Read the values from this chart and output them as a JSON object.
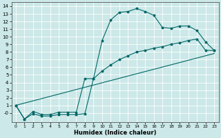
{
  "title": "",
  "xlabel": "Humidex (Indice chaleur)",
  "bg_color": "#cce8e8",
  "grid_color": "#ffffff",
  "line_color": "#006666",
  "xlim": [
    -0.5,
    23.5
  ],
  "ylim": [
    -1.2,
    14.5
  ],
  "xticks": [
    0,
    1,
    2,
    3,
    4,
    5,
    6,
    7,
    8,
    9,
    10,
    11,
    12,
    13,
    14,
    15,
    16,
    17,
    18,
    19,
    20,
    21,
    22,
    23
  ],
  "yticks": [
    0,
    1,
    2,
    3,
    4,
    5,
    6,
    7,
    8,
    9,
    10,
    11,
    12,
    13,
    14
  ],
  "ytick_labels": [
    "-0",
    "1",
    "2",
    "3",
    "4",
    "5",
    "6",
    "7",
    "8",
    "9",
    "10",
    "11",
    "12",
    "13",
    "14"
  ],
  "curve1_x": [
    0,
    1,
    2,
    3,
    4,
    5,
    6,
    7,
    8,
    9,
    10,
    11,
    12,
    13,
    14,
    15,
    16,
    17,
    18,
    19,
    20,
    21,
    22,
    23
  ],
  "curve1_y": [
    1,
    -0.8,
    -0.1,
    -0.4,
    -0.4,
    -0.2,
    -0.2,
    -0.2,
    -0.1,
    4.5,
    9.5,
    12.2,
    13.2,
    13.3,
    13.7,
    13.3,
    12.8,
    11.2,
    11.1,
    11.4,
    11.4,
    10.8,
    9.3,
    8.2
  ],
  "curve2_x": [
    0,
    1,
    2,
    3,
    4,
    5,
    6,
    7,
    8,
    9,
    10,
    11,
    12,
    13,
    14,
    15,
    16,
    17,
    18,
    19,
    20,
    21,
    22,
    23
  ],
  "curve2_y": [
    1,
    -0.8,
    0.2,
    -0.2,
    -0.2,
    0.1,
    0.1,
    0.1,
    4.5,
    4.5,
    5.5,
    6.3,
    7.0,
    7.5,
    8.0,
    8.2,
    8.5,
    8.7,
    9.0,
    9.2,
    9.5,
    9.7,
    8.2,
    8.2
  ],
  "curve3_x": [
    0,
    23
  ],
  "curve3_y": [
    1,
    7.8
  ]
}
